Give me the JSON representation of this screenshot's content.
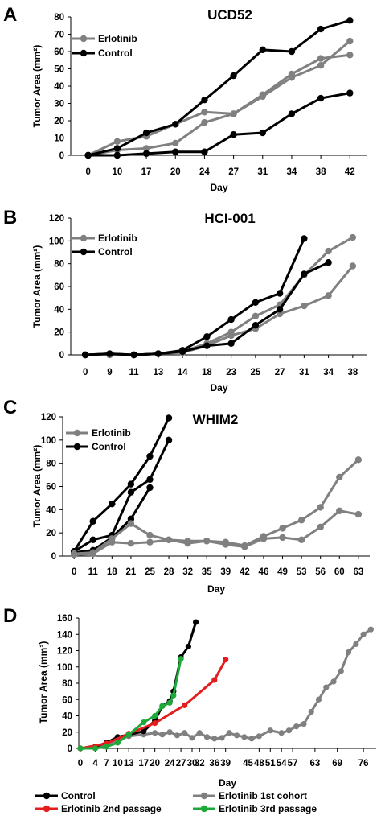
{
  "colors": {
    "control": "#000000",
    "erlotinib": "#808080",
    "passage2": "#e41e1e",
    "passage3": "#1fa83a"
  },
  "chart_data": [
    {
      "panel": "A",
      "type": "line",
      "title": "UCD52",
      "xlabel": "Day",
      "ylabel": "Tumor Area (mm²)",
      "categories": [
        "0",
        "10",
        "17",
        "20",
        "24",
        "27",
        "31",
        "34",
        "38",
        "42"
      ],
      "ylim": [
        0,
        80
      ],
      "yticks": [
        0,
        10,
        20,
        30,
        40,
        50,
        60,
        70,
        80
      ],
      "legend": [
        {
          "label": "Erlotinib",
          "color": "#808080"
        },
        {
          "label": "Control",
          "color": "#000000"
        }
      ],
      "series": [
        {
          "group": "Erlotinib",
          "color": "#808080",
          "values": [
            0,
            8,
            11,
            18,
            25,
            24,
            35,
            47,
            56,
            58
          ]
        },
        {
          "group": "Erlotinib",
          "color": "#808080",
          "values": [
            0,
            3,
            4,
            7,
            19,
            24,
            34,
            45,
            52,
            66
          ]
        },
        {
          "group": "Control",
          "color": "#000000",
          "values": [
            0,
            4,
            13,
            18,
            32,
            46,
            61,
            60,
            73,
            78
          ]
        },
        {
          "group": "Control",
          "color": "#000000",
          "values": [
            0,
            0,
            1,
            2,
            2,
            12,
            13,
            24,
            33,
            36
          ]
        }
      ]
    },
    {
      "panel": "B",
      "type": "line",
      "title": "HCI-001",
      "xlabel": "Day",
      "ylabel": "Tumor Area (mm²)",
      "categories": [
        "0",
        "9",
        "11",
        "13",
        "14",
        "18",
        "23",
        "25",
        "27",
        "31",
        "34",
        "38"
      ],
      "ylim": [
        0,
        120
      ],
      "yticks": [
        0,
        20,
        40,
        60,
        80,
        100,
        120
      ],
      "legend": [
        {
          "label": "Erlotinib",
          "color": "#808080"
        },
        {
          "label": "Control",
          "color": "#000000"
        }
      ],
      "series": [
        {
          "group": "Erlotinib",
          "color": "#808080",
          "values": [
            0,
            0,
            0,
            1,
            3,
            10,
            20,
            34,
            44,
            70,
            91,
            103
          ]
        },
        {
          "group": "Erlotinib",
          "color": "#808080",
          "values": [
            0,
            0,
            0,
            1,
            2,
            8,
            17,
            23,
            36,
            43,
            52,
            78
          ]
        },
        {
          "group": "Control",
          "color": "#000000",
          "values": [
            0,
            1,
            0,
            1,
            4,
            16,
            31,
            46,
            54,
            102,
            null,
            null
          ]
        },
        {
          "group": "Control",
          "color": "#000000",
          "values": [
            0,
            1,
            0,
            1,
            3,
            8,
            10,
            26,
            40,
            71,
            81,
            null
          ]
        }
      ]
    },
    {
      "panel": "C",
      "type": "line",
      "title": "WHIM2",
      "xlabel": "Day",
      "ylabel": "Tumor Area (mm²)",
      "categories": [
        "0",
        "11",
        "18",
        "21",
        "25",
        "28",
        "32",
        "35",
        "39",
        "42",
        "46",
        "49",
        "53",
        "56",
        "60",
        "63"
      ],
      "ylim": [
        0,
        120
      ],
      "yticks": [
        0,
        20,
        40,
        60,
        80,
        100,
        120
      ],
      "legend": [
        {
          "label": "Erlotinib",
          "color": "#808080"
        },
        {
          "label": "Control",
          "color": "#000000"
        }
      ],
      "series": [
        {
          "group": "Control",
          "color": "#000000",
          "values": [
            4,
            30,
            45,
            62,
            86,
            119,
            null,
            null,
            null,
            null,
            null,
            null,
            null,
            null,
            null,
            null
          ]
        },
        {
          "group": "Control",
          "color": "#000000",
          "values": [
            4,
            14,
            18,
            55,
            66,
            100,
            null,
            null,
            null,
            null,
            null,
            null,
            null,
            null,
            null,
            null
          ]
        },
        {
          "group": "Control",
          "color": "#000000",
          "values": [
            3,
            5,
            16,
            32,
            59,
            null,
            null,
            null,
            null,
            null,
            null,
            null,
            null,
            null,
            null,
            null
          ]
        },
        {
          "group": "Erlotinib",
          "color": "#808080",
          "values": [
            2,
            3,
            15,
            28,
            18,
            14,
            13,
            13,
            12,
            9,
            17,
            24,
            31,
            42,
            68,
            83
          ]
        },
        {
          "group": "Erlotinib",
          "color": "#808080",
          "values": [
            1,
            2,
            12,
            11,
            12,
            14,
            11,
            13,
            10,
            8,
            15,
            16,
            14,
            25,
            39,
            36
          ]
        }
      ]
    },
    {
      "panel": "D",
      "type": "line",
      "title": "",
      "xlabel": "Day",
      "ylabel": "Tumor Area (mm²)",
      "xticks": [
        0,
        4,
        7,
        10,
        13,
        17,
        20,
        24,
        27,
        30,
        32,
        36,
        39,
        45,
        48,
        51,
        54,
        57,
        63,
        69,
        76
      ],
      "xlim": [
        0,
        79
      ],
      "ylim": [
        0,
        160
      ],
      "yticks": [
        0,
        20,
        40,
        60,
        80,
        100,
        120,
        140,
        160
      ],
      "legend": [
        {
          "label": "Control",
          "color": "#000000"
        },
        {
          "label": "Erlotinib 1st cohort",
          "color": "#808080"
        },
        {
          "label": "Erlotinib 2nd passage",
          "color": "#e41e1e"
        },
        {
          "label": "Erlotinib 3rd passage",
          "color": "#1fa83a"
        }
      ],
      "series": [
        {
          "group": "Erlotinib 1st cohort",
          "color": "#808080",
          "x": [
            0,
            4,
            7,
            10,
            13,
            17,
            20,
            22,
            24,
            26,
            28,
            30,
            32,
            34,
            36,
            38,
            40,
            42,
            44,
            46,
            48,
            51,
            54,
            56,
            58,
            60,
            62,
            64,
            66,
            68,
            70,
            72,
            74,
            76,
            78
          ],
          "y": [
            0,
            2,
            5,
            10,
            15,
            17,
            19,
            17,
            20,
            16,
            19,
            13,
            19,
            14,
            12,
            13,
            19,
            16,
            14,
            12,
            15,
            22,
            19,
            22,
            27,
            30,
            45,
            60,
            75,
            82,
            95,
            118,
            128,
            140,
            146
          ]
        },
        {
          "group": "Control",
          "color": "#000000",
          "x": [
            0,
            4,
            7,
            10,
            13,
            17,
            20,
            22,
            24,
            25,
            27,
            29,
            31
          ],
          "y": [
            0,
            2,
            7,
            14,
            17,
            21,
            34,
            52,
            58,
            70,
            112,
            125,
            155
          ]
        },
        {
          "group": "Erlotinib 2nd passage",
          "color": "#e41e1e",
          "x": [
            0,
            7,
            13,
            20,
            28,
            36,
            39
          ],
          "y": [
            0,
            6,
            18,
            31,
            53,
            84,
            109
          ]
        },
        {
          "group": "Erlotinib 3rd passage",
          "color": "#1fa83a",
          "x": [
            0,
            4,
            7,
            10,
            13,
            17,
            20,
            22,
            24,
            25,
            27
          ],
          "y": [
            0,
            0,
            2,
            7,
            17,
            32,
            40,
            52,
            56,
            65,
            110
          ]
        }
      ]
    }
  ]
}
